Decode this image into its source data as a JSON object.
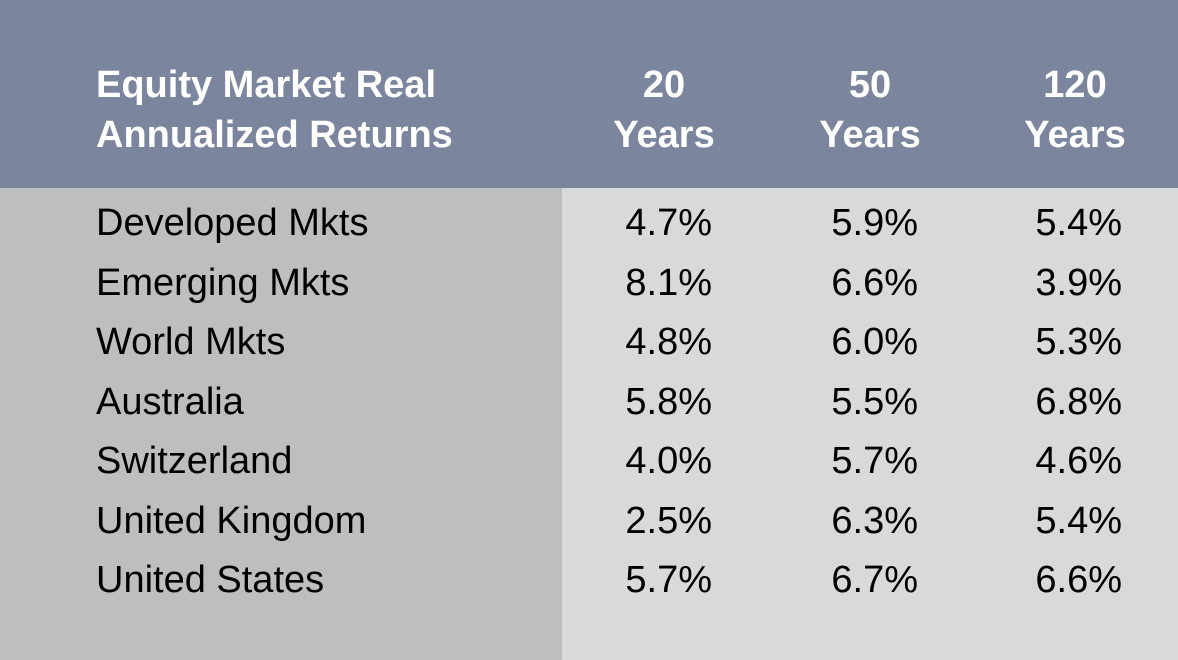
{
  "chart_data": {
    "type": "table",
    "title_lines": [
      "Equity Market Real",
      "Annualized Returns"
    ],
    "columns": [
      {
        "line1": "20",
        "line2": "Years"
      },
      {
        "line1": "50",
        "line2": "Years"
      },
      {
        "line1": "120",
        "line2": "Years"
      }
    ],
    "rows": [
      {
        "label": "Developed Mkts",
        "values": [
          "4.7%",
          "5.9%",
          "5.4%"
        ]
      },
      {
        "label": "Emerging Mkts",
        "values": [
          "8.1%",
          "6.6%",
          "3.9%"
        ]
      },
      {
        "label": "World Mkts",
        "values": [
          "4.8%",
          "6.0%",
          "5.3%"
        ]
      },
      {
        "label": "Australia",
        "values": [
          "5.8%",
          "5.5%",
          "6.8%"
        ]
      },
      {
        "label": "Switzerland",
        "values": [
          "4.0%",
          "5.7%",
          "4.6%"
        ]
      },
      {
        "label": "United Kingdom",
        "values": [
          "2.5%",
          "6.3%",
          "5.4%"
        ]
      },
      {
        "label": "United States",
        "values": [
          "5.7%",
          "6.7%",
          "6.6%"
        ]
      }
    ]
  },
  "colors": {
    "header_bg": "#7b859d",
    "label_column_bg": "#bebebe",
    "value_area_bg": "#d9d9d9",
    "header_text": "#ffffff",
    "body_text": "#000000"
  }
}
